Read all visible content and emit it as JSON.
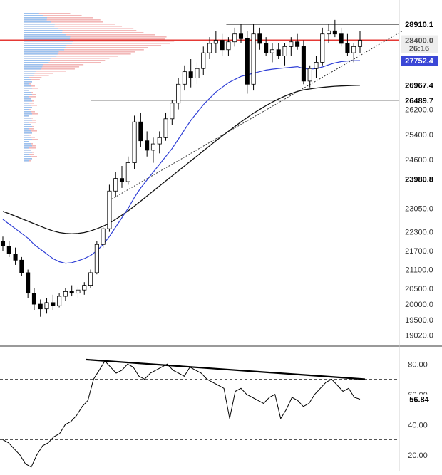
{
  "chart_data": [
    {
      "type": "candlestick",
      "y_ticks": [
        "26200.0",
        "25400.0",
        "24600.0",
        "23050.0",
        "22300.0",
        "21700.0",
        "21100.0",
        "20500.0",
        "20000.0",
        "19500.0",
        "19020.0"
      ],
      "price_labels": [
        {
          "text": "28910.1",
          "value": 28910.1,
          "style": "dark"
        },
        {
          "text": "28400.0",
          "value": 28400.0,
          "style": "grey"
        },
        {
          "text": "26:16",
          "value": 28150,
          "style": "grey"
        },
        {
          "text": "27752.4",
          "value": 27752.4,
          "style": "blue"
        },
        {
          "text": "26967.4",
          "value": 26967.4,
          "style": "dark"
        },
        {
          "text": "26489.7",
          "value": 26489.7,
          "style": "dark"
        },
        {
          "text": "23980.8",
          "value": 23980.8,
          "style": "dark"
        }
      ],
      "horizontal_levels": [
        {
          "value": 28910.1,
          "from": 0.62,
          "color": "#000000"
        },
        {
          "value": 28400.0,
          "from": 0.0,
          "color": "#e53935"
        },
        {
          "value": 26489.7,
          "from": 0.25,
          "color": "#000000"
        },
        {
          "value": 23980.8,
          "from": 0.0,
          "color": "#000000"
        }
      ],
      "candles_ohlc": [
        [
          21990,
          22150,
          21700,
          21850
        ],
        [
          21850,
          22000,
          21500,
          21600
        ],
        [
          21600,
          21800,
          21250,
          21400
        ],
        [
          21400,
          21500,
          20900,
          21000
        ],
        [
          21000,
          21100,
          20200,
          20350
        ],
        [
          20350,
          20500,
          19800,
          20000
        ],
        [
          20000,
          20150,
          19600,
          19850
        ],
        [
          19850,
          20200,
          19700,
          20050
        ],
        [
          20050,
          20300,
          19800,
          19950
        ],
        [
          19950,
          20350,
          19900,
          20250
        ],
        [
          20250,
          20500,
          20100,
          20400
        ],
        [
          20400,
          20600,
          20250,
          20350
        ],
        [
          20350,
          20550,
          20200,
          20450
        ],
        [
          20450,
          20700,
          20300,
          20600
        ],
        [
          20600,
          21100,
          20500,
          21000
        ],
        [
          21000,
          22000,
          20950,
          21900
        ],
        [
          21900,
          22500,
          21800,
          22400
        ],
        [
          22400,
          23800,
          22300,
          23600
        ],
        [
          23600,
          24200,
          23400,
          24000
        ],
        [
          24000,
          24400,
          23700,
          23900
        ],
        [
          23900,
          24700,
          23800,
          24500
        ],
        [
          24500,
          26000,
          24300,
          25800
        ],
        [
          25800,
          26100,
          25000,
          25200
        ],
        [
          25200,
          25500,
          24700,
          24900
        ],
        [
          24900,
          25300,
          24500,
          25100
        ],
        [
          25100,
          25500,
          24800,
          25300
        ],
        [
          25300,
          26100,
          25200,
          25900
        ],
        [
          25900,
          26500,
          25700,
          26400
        ],
        [
          26400,
          27200,
          26200,
          27000
        ],
        [
          27000,
          27600,
          26800,
          27400
        ],
        [
          27400,
          27800,
          26900,
          27200
        ],
        [
          27200,
          27700,
          27000,
          27500
        ],
        [
          27500,
          28200,
          27300,
          28000
        ],
        [
          28000,
          28500,
          27800,
          28300
        ],
        [
          28300,
          28700,
          28000,
          28400
        ],
        [
          28400,
          28600,
          27900,
          28100
        ],
        [
          28100,
          28500,
          27900,
          28350
        ],
        [
          28350,
          28800,
          28200,
          28600
        ],
        [
          28600,
          28900,
          28300,
          28450
        ],
        [
          28450,
          28700,
          26700,
          27000
        ],
        [
          27000,
          28900,
          26800,
          28600
        ],
        [
          28600,
          28800,
          28100,
          28300
        ],
        [
          28300,
          28500,
          27900,
          28000
        ],
        [
          28000,
          28300,
          27700,
          28100
        ],
        [
          28100,
          28300,
          27800,
          27900
        ],
        [
          27900,
          28300,
          27600,
          28200
        ],
        [
          28200,
          28500,
          27900,
          28350
        ],
        [
          28350,
          28600,
          28100,
          28200
        ],
        [
          28200,
          28400,
          27000,
          27100
        ],
        [
          27100,
          27600,
          26900,
          27500
        ],
        [
          27500,
          27900,
          27200,
          27700
        ],
        [
          27700,
          28800,
          27600,
          28600
        ],
        [
          28600,
          28900,
          28300,
          28700
        ],
        [
          28700,
          29050,
          28500,
          28600
        ],
        [
          28600,
          28800,
          28200,
          28300
        ],
        [
          28300,
          28600,
          27900,
          28000
        ],
        [
          28000,
          28300,
          27700,
          28200
        ],
        [
          28200,
          28700,
          28000,
          28400
        ]
      ],
      "ema50": [
        22700,
        22550,
        22400,
        22250,
        22100,
        21900,
        21750,
        21600,
        21450,
        21350,
        21300,
        21320,
        21380,
        21450,
        21550,
        21700,
        21900,
        22150,
        22450,
        22750,
        23050,
        23400,
        23700,
        23950,
        24200,
        24450,
        24700,
        24950,
        25250,
        25550,
        25850,
        26100,
        26350,
        26550,
        26750,
        26900,
        27050,
        27150,
        27250,
        27300,
        27350,
        27400,
        27450,
        27480,
        27500,
        27520,
        27540,
        27560,
        27500,
        27480,
        27500,
        27550,
        27620,
        27680,
        27720,
        27740,
        27750,
        27752
      ],
      "ema200": [
        22950,
        22880,
        22800,
        22720,
        22640,
        22560,
        22480,
        22400,
        22330,
        22280,
        22250,
        22240,
        22250,
        22280,
        22330,
        22400,
        22480,
        22580,
        22700,
        22830,
        22970,
        23120,
        23280,
        23440,
        23600,
        23760,
        23920,
        24080,
        24240,
        24400,
        24560,
        24720,
        24880,
        25040,
        25200,
        25350,
        25500,
        25650,
        25800,
        25940,
        26080,
        26200,
        26320,
        26430,
        26530,
        26620,
        26700,
        26770,
        26820,
        26850,
        26880,
        26900,
        26920,
        26935,
        26945,
        26955,
        26962,
        26967
      ]
    },
    {
      "type": "line",
      "y_ticks": [
        "80.00",
        "60.00",
        "40.00",
        "20.00"
      ],
      "ylim": [
        10,
        90
      ],
      "levels": [
        70,
        30
      ],
      "last_label": "56.84",
      "values": [
        30,
        28,
        24,
        20,
        14,
        12,
        20,
        26,
        28,
        32,
        34,
        40,
        42,
        46,
        52,
        56,
        70,
        76,
        82,
        78,
        74,
        76,
        80,
        78,
        72,
        70,
        74,
        76,
        78,
        80,
        76,
        74,
        72,
        78,
        76,
        74,
        70,
        68,
        66,
        64,
        44,
        62,
        64,
        60,
        58,
        56,
        54,
        58,
        60,
        44,
        50,
        58,
        56,
        52,
        54,
        60,
        64,
        68,
        70,
        66,
        62,
        64,
        58,
        56.84
      ]
    }
  ]
}
